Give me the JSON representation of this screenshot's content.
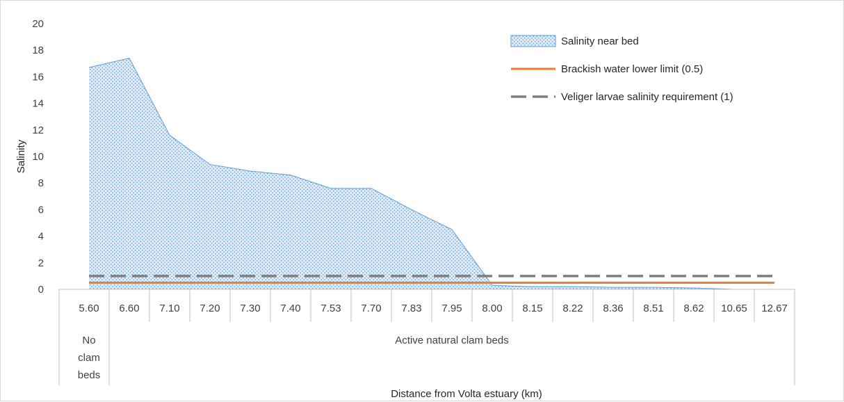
{
  "chart_data": {
    "type": "area",
    "x": [
      "5.60",
      "6.60",
      "7.10",
      "7.20",
      "7.30",
      "7.40",
      "7.53",
      "7.70",
      "7.83",
      "7.95",
      "8.00",
      "8.15",
      "8.22",
      "8.36",
      "8.51",
      "8.62",
      "10.65",
      "12.67"
    ],
    "xlabel": "Distance from Volta estuary (km)",
    "ylabel": "Salinity",
    "ylim": [
      0,
      20
    ],
    "yticks": [
      "0",
      "2",
      "4",
      "6",
      "8",
      "10",
      "12",
      "14",
      "16",
      "18",
      "20"
    ],
    "group_labels": [
      {
        "text": "No clam beds",
        "lines": [
          "No",
          "clam",
          "beds"
        ],
        "from": 0,
        "to": 0
      },
      {
        "text": "Active natural clam beds",
        "lines": [
          "Active natural clam beds"
        ],
        "from": 1,
        "to": 17
      }
    ],
    "series": [
      {
        "name": "Salinity near bed",
        "type": "area",
        "color": "#5b9bd5",
        "fill": "#deebf7",
        "values": [
          16.7,
          17.4,
          11.6,
          9.4,
          8.9,
          8.6,
          7.6,
          7.6,
          6.0,
          4.5,
          0.3,
          0.2,
          0.2,
          0.15,
          0.15,
          0.1,
          0.0,
          0.0
        ]
      },
      {
        "name": "Brackish water lower limit (0.5)",
        "type": "line",
        "color": "#ed7d31",
        "dash": "solid",
        "values": [
          0.5,
          0.5,
          0.5,
          0.5,
          0.5,
          0.5,
          0.5,
          0.5,
          0.5,
          0.5,
          0.5,
          0.5,
          0.5,
          0.5,
          0.5,
          0.5,
          0.5,
          0.5
        ]
      },
      {
        "name": "Veliger larvae salinity requirement (1)",
        "type": "line",
        "color": "#7f7f7f",
        "dash": "dashed",
        "values": [
          1,
          1,
          1,
          1,
          1,
          1,
          1,
          1,
          1,
          1,
          1,
          1,
          1,
          1,
          1,
          1,
          1,
          1
        ]
      }
    ],
    "legend": "top-right",
    "grid": false
  }
}
